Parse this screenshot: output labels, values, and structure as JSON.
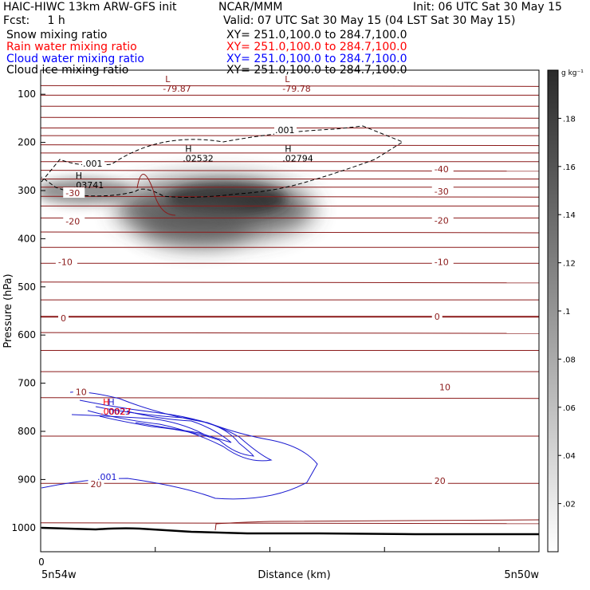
{
  "header": {
    "title_left": "HAIC-HIWC 13km ARW-GFS init",
    "title_center": "NCAR/MMM",
    "init": "Init: 06 UTC Sat 30 May 15",
    "fcst": "Fcst:     1 h",
    "valid": "Valid: 07 UTC Sat 30 May 15 (04 LST Sat 30 May 15)",
    "fields": [
      {
        "name": "Snow mixing ratio",
        "xy": "XY= 251.0,100.0 to 284.7,100.0",
        "color": "#000000"
      },
      {
        "name": "Rain water mixing ratio",
        "xy": "XY= 251.0,100.0 to 284.7,100.0",
        "color": "#ff0000"
      },
      {
        "name": "Cloud water mixing ratio",
        "xy": "XY= 251.0,100.0 to 284.7,100.0",
        "color": "#0000ff"
      },
      {
        "name": "Cloud ice mixing ratio",
        "xy": "XY= 251.0,100.0 to 284.7,100.0",
        "color": "#000000"
      }
    ]
  },
  "colors": {
    "temperature": "#8b1a1a",
    "cloud_water": "#1a1ad0",
    "rain": "#ff0000",
    "ice": "#000000",
    "terrain": "#000000"
  },
  "chart_data": {
    "type": "contour",
    "xlabel": "Distance (km)",
    "ylabel": "Pressure (hPa)",
    "x_tick_labels": [
      "0"
    ],
    "x_endpoints": {
      "left": "5n54w",
      "right": "5n50w"
    },
    "ylim": [
      1050,
      50
    ],
    "y_ticks": [
      100,
      200,
      300,
      400,
      500,
      600,
      700,
      800,
      900,
      1000
    ],
    "colorbar": {
      "unit": "g kg⁻¹",
      "ticks": [
        0.02,
        0.04,
        0.06,
        0.08,
        0.1,
        0.12,
        0.14,
        0.16,
        0.18
      ],
      "range": [
        0,
        0.2
      ]
    },
    "snow_max": [
      {
        "label": "H",
        "value": ".02532",
        "x_frac": 0.29,
        "p": 230
      },
      {
        "label": "H",
        "value": ".02794",
        "x_frac": 0.49,
        "p": 230
      },
      {
        "label": "H",
        "value": ".03741",
        "x_frac": 0.07,
        "p": 285
      }
    ],
    "temperature_min": [
      {
        "label": "L",
        "value": "-79.87",
        "x_frac": 0.25,
        "p": 85
      },
      {
        "label": "L",
        "value": "-79.78",
        "x_frac": 0.49,
        "p": 85
      }
    ],
    "cloud_water_max": [
      {
        "label": "H",
        "value": ".0023",
        "x_frac": 0.135,
        "p": 755
      }
    ],
    "rain_max": [
      {
        "label": "H",
        "value": ".00027",
        "x_frac": 0.125,
        "p": 755
      }
    ],
    "ice_contour_label": ".001",
    "cloud_water_contour_label": ".001",
    "temperature_labels": [
      {
        "value": "-40",
        "x_frac": 0.79,
        "p": 255
      },
      {
        "value": "-30",
        "x_frac": 0.05,
        "p": 305
      },
      {
        "value": "-30",
        "x_frac": 0.79,
        "p": 302
      },
      {
        "value": "-20",
        "x_frac": 0.05,
        "p": 364
      },
      {
        "value": "-20",
        "x_frac": 0.79,
        "p": 362
      },
      {
        "value": "-10",
        "x_frac": 0.035,
        "p": 448
      },
      {
        "value": "-10",
        "x_frac": 0.79,
        "p": 448
      },
      {
        "value": "0",
        "x_frac": 0.04,
        "p": 565
      },
      {
        "value": "0",
        "x_frac": 0.79,
        "p": 562
      },
      {
        "value": "10",
        "x_frac": 0.07,
        "p": 718
      },
      {
        "value": "10",
        "x_frac": 0.8,
        "p": 708
      },
      {
        "value": "20",
        "x_frac": 0.1,
        "p": 909
      },
      {
        "value": "20",
        "x_frac": 0.79,
        "p": 903
      }
    ],
    "isotherm_pressures": [
      82,
      102,
      125,
      148,
      170,
      186,
      205,
      222,
      240,
      258,
      276,
      293,
      312,
      332,
      357,
      386,
      418,
      451,
      490,
      527,
      562,
      595,
      632,
      676,
      730,
      810,
      908,
      990
    ]
  }
}
